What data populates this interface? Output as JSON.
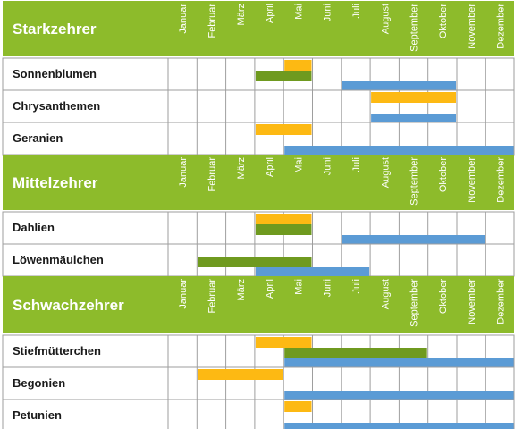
{
  "colors": {
    "header_green": "#8dbb2b",
    "sow": "#fdb913",
    "plant": "#6f9a1f",
    "harvest": "#5b9bd5",
    "grid": "#9e9e9e",
    "background": "#ffffff"
  },
  "months": [
    "Januar",
    "Februar",
    "März",
    "April",
    "Mai",
    "Juni",
    "Juli",
    "August",
    "September",
    "Oktober",
    "November",
    "Dezember"
  ],
  "chart_data": {
    "type": "gantt",
    "x_unit": "Monat",
    "groups": [
      {
        "title": "Starkzehrer",
        "rows": [
          {
            "name": "Sonnenblumen",
            "bars": [
              {
                "kind": "sow",
                "start": 5,
                "end": 5
              },
              {
                "kind": "plant",
                "start": 4,
                "end": 5
              },
              {
                "kind": "harvest",
                "start": 7,
                "end": 10
              }
            ]
          },
          {
            "name": "Chrysanthemen",
            "bars": [
              {
                "kind": "sow",
                "start": 8,
                "end": 10
              },
              {
                "kind": "harvest",
                "start": 8,
                "end": 10
              }
            ]
          },
          {
            "name": "Geranien",
            "bars": [
              {
                "kind": "sow",
                "start": 4,
                "end": 5
              },
              {
                "kind": "harvest",
                "start": 5,
                "end": 12
              }
            ]
          }
        ]
      },
      {
        "title": "Mittelzehrer",
        "rows": [
          {
            "name": "Dahlien",
            "bars": [
              {
                "kind": "sow",
                "start": 4,
                "end": 5
              },
              {
                "kind": "plant",
                "start": 4,
                "end": 5
              },
              {
                "kind": "harvest",
                "start": 7,
                "end": 11
              }
            ]
          },
          {
            "name": "Löwenmäulchen",
            "bars": [
              {
                "kind": "plant",
                "start": 2,
                "end": 5
              },
              {
                "kind": "harvest",
                "start": 4,
                "end": 7
              }
            ]
          }
        ]
      },
      {
        "title": "Schwachzehrer",
        "rows": [
          {
            "name": "Stiefmütterchen",
            "bars": [
              {
                "kind": "sow",
                "start": 4,
                "end": 5
              },
              {
                "kind": "plant",
                "start": 5,
                "end": 9
              },
              {
                "kind": "harvest",
                "start": 5,
                "end": 12
              }
            ]
          },
          {
            "name": "Begonien",
            "bars": [
              {
                "kind": "sow",
                "start": 2,
                "end": 4
              },
              {
                "kind": "harvest",
                "start": 5,
                "end": 12
              }
            ]
          },
          {
            "name": "Petunien",
            "bars": [
              {
                "kind": "sow",
                "start": 5,
                "end": 5
              },
              {
                "kind": "harvest",
                "start": 5,
                "end": 12
              }
            ]
          }
        ]
      }
    ]
  }
}
